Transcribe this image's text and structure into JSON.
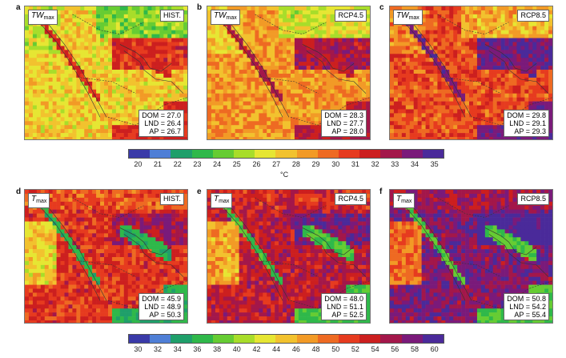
{
  "panels": [
    {
      "id": "a",
      "letter": "a",
      "var_base": "TW",
      "var_sub": "max",
      "scenario": "HIST.",
      "stats": [
        "DOM = 27.0",
        "LND = 26.4",
        "AP = 26.7"
      ],
      "heat": 0.35,
      "kind": "tw"
    },
    {
      "id": "b",
      "letter": "b",
      "var_base": "TW",
      "var_sub": "max",
      "scenario": "RCP4.5",
      "stats": [
        "DOM = 28.3",
        "LND = 27.7",
        "AP = 28.0"
      ],
      "heat": 0.55,
      "kind": "tw"
    },
    {
      "id": "c",
      "letter": "c",
      "var_base": "TW",
      "var_sub": "max",
      "scenario": "RCP8.5",
      "stats": [
        "DOM = 29.8",
        "LND = 29.1",
        "AP = 29.3"
      ],
      "heat": 0.8,
      "kind": "tw"
    },
    {
      "id": "d",
      "letter": "d",
      "var_base": "T",
      "var_sub": "max",
      "scenario": "HIST.",
      "stats": [
        "DOM = 45.9",
        "LND = 48.9",
        "AP = 50.3"
      ],
      "heat": 0.45,
      "kind": "t"
    },
    {
      "id": "e",
      "letter": "e",
      "var_base": "T",
      "var_sub": "max",
      "scenario": "RCP4.5",
      "stats": [
        "DOM = 48.0",
        "LND = 51.1",
        "AP = 52.5"
      ],
      "heat": 0.65,
      "kind": "t"
    },
    {
      "id": "f",
      "letter": "f",
      "var_base": "T",
      "var_sub": "max",
      "scenario": "RCP8.5",
      "stats": [
        "DOM = 50.8",
        "LND = 54.2",
        "AP = 55.4"
      ],
      "heat": 0.88,
      "kind": "t"
    }
  ],
  "colorbar_tw": {
    "colors": [
      "#3a3aa8",
      "#4f7fd6",
      "#1f9f6a",
      "#2fb84a",
      "#66cc33",
      "#a8dd2a",
      "#e6e633",
      "#f2c22e",
      "#f29a26",
      "#ee6a22",
      "#e63b1f",
      "#cc1f1f",
      "#a3174a",
      "#7a1a7a",
      "#4a2a9a"
    ],
    "ticks": [
      "20",
      "21",
      "22",
      "23",
      "24",
      "25",
      "26",
      "27",
      "28",
      "29",
      "30",
      "31",
      "32",
      "33",
      "34",
      "35"
    ],
    "unit": "°C"
  },
  "colorbar_t": {
    "colors": [
      "#3a3aa8",
      "#4f7fd6",
      "#1f9f6a",
      "#2fb84a",
      "#66cc33",
      "#a8dd2a",
      "#e6e633",
      "#f2c22e",
      "#f29a26",
      "#ee6a22",
      "#e63b1f",
      "#cc1f1f",
      "#a3174a",
      "#7a1a7a",
      "#4a2a9a"
    ],
    "ticks": [
      "30",
      "32",
      "34",
      "36",
      "38",
      "40",
      "42",
      "44",
      "46",
      "48",
      "50",
      "52",
      "54",
      "56",
      "58",
      "60"
    ]
  }
}
